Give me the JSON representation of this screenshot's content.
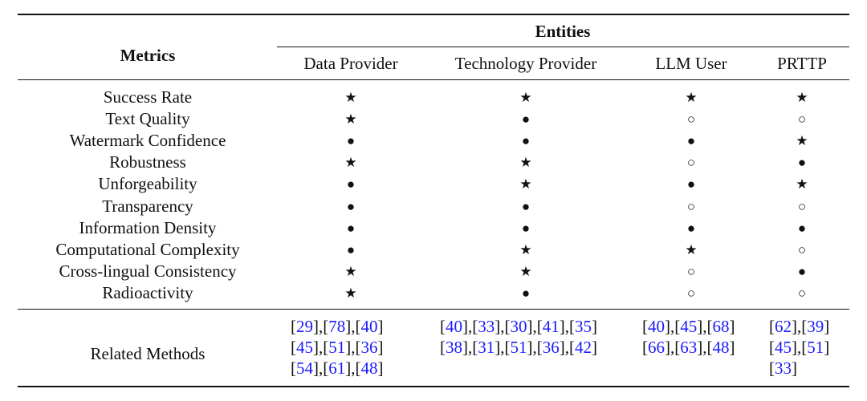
{
  "table": {
    "header": {
      "metrics": "Metrics",
      "entities": "Entities",
      "columns": [
        "Data Provider",
        "Technology Provider",
        "LLM User",
        "PRTTP"
      ]
    },
    "rows": [
      [
        "Success Rate",
        "★",
        "★",
        "★",
        "★"
      ],
      [
        "Text Quality",
        "★",
        "●",
        "○",
        "○"
      ],
      [
        "Watermark Confidence",
        "●",
        "●",
        "●",
        "★"
      ],
      [
        "Robustness",
        "★",
        "★",
        "○",
        "●"
      ],
      [
        "Unforgeability",
        "●",
        "★",
        "●",
        "★"
      ],
      [
        "Transparency",
        "●",
        "●",
        "○",
        "○"
      ],
      [
        "Information Density",
        "●",
        "●",
        "●",
        "●"
      ],
      [
        "Computational Complexity",
        "●",
        "★",
        "★",
        "○"
      ],
      [
        "Cross-lingual Consistency",
        "★",
        "★",
        "○",
        "●"
      ],
      [
        "Radioactivity",
        "★",
        "●",
        "○",
        "○"
      ]
    ],
    "related": {
      "label": "Related Methods",
      "cells": [
        [
          "[29],[78],[40]",
          "[45],[51],[36]",
          "[54],[61],[48]"
        ],
        [
          "[40],[33],[30],[41],[35]",
          "[38],[31],[51],[36],[42]"
        ],
        [
          "[40],[45],[68]",
          "[66],[63],[48]"
        ],
        [
          "[62],[39]",
          "[45],[51]",
          "[33]"
        ]
      ]
    }
  }
}
